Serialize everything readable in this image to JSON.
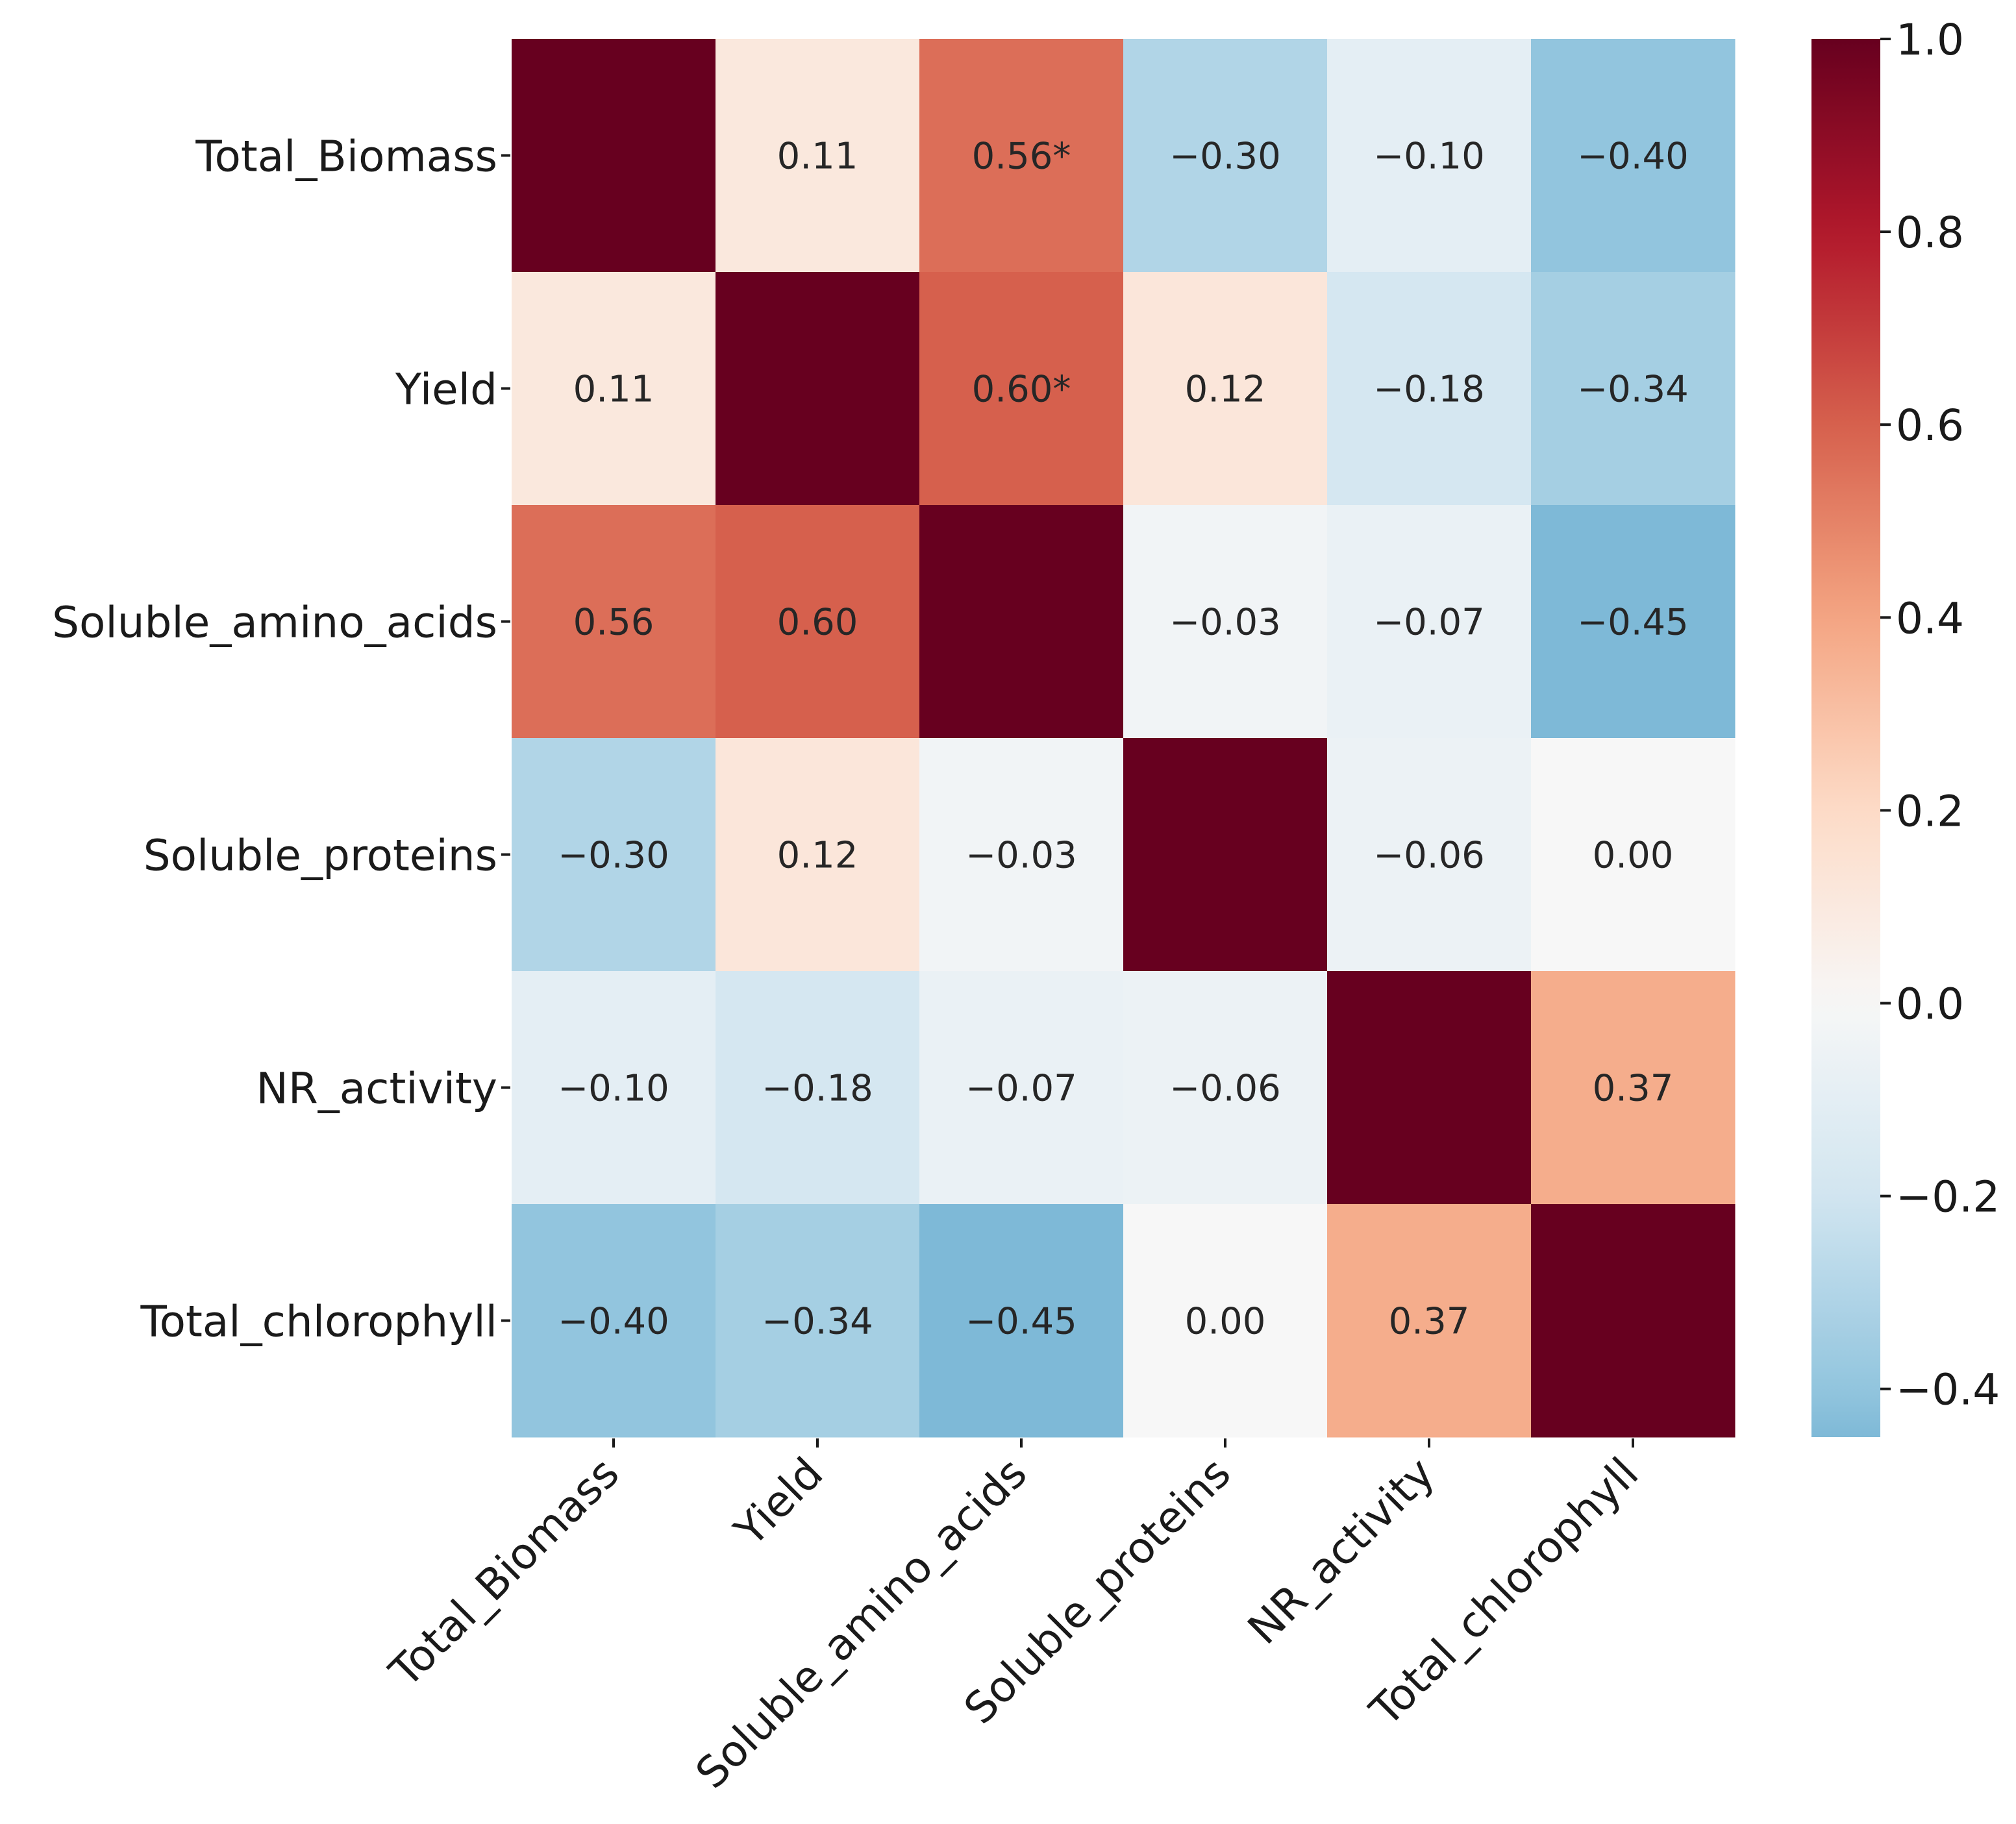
{
  "chart_data": {
    "type": "heatmap",
    "title": "",
    "xlabel": "",
    "ylabel": "",
    "rows": [
      "Total_Biomass",
      "Yield",
      "Soluble_amino_acids",
      "Soluble_proteins",
      "NR_activity",
      "Total_chlorophyll"
    ],
    "columns": [
      "Total_Biomass",
      "Yield",
      "Soluble_amino_acids",
      "Soluble_proteins",
      "NR_activity",
      "Total_chlorophyll"
    ],
    "values": [
      [
        1.0,
        0.11,
        0.56,
        -0.3,
        -0.1,
        -0.4
      ],
      [
        0.11,
        1.0,
        0.6,
        0.12,
        -0.18,
        -0.34
      ],
      [
        0.56,
        0.6,
        1.0,
        -0.03,
        -0.07,
        -0.45
      ],
      [
        -0.3,
        0.12,
        -0.03,
        1.0,
        -0.06,
        0.0
      ],
      [
        -0.1,
        -0.18,
        -0.07,
        -0.06,
        1.0,
        0.37
      ],
      [
        -0.4,
        -0.34,
        -0.45,
        0.0,
        0.37,
        1.0
      ]
    ],
    "cell_labels": [
      [
        "",
        "0.11",
        "0.56*",
        "−0.30",
        "−0.10",
        "−0.40"
      ],
      [
        "0.11",
        "",
        "0.60*",
        "0.12",
        "−0.18",
        "−0.34"
      ],
      [
        "0.56",
        "0.60",
        "",
        "−0.03",
        "−0.07",
        "−0.45"
      ],
      [
        "−0.30",
        "0.12",
        "−0.03",
        "",
        "−0.06",
        "0.00"
      ],
      [
        "−0.10",
        "−0.18",
        "−0.07",
        "−0.06",
        "",
        "0.37"
      ],
      [
        "−0.40",
        "−0.34",
        "−0.45",
        "0.00",
        "0.37",
        ""
      ]
    ],
    "colorscale": "RdBu_r",
    "vmin": -0.45,
    "vmax": 1.0,
    "colorbar": {
      "ticks": [
        1.0,
        0.8,
        0.6,
        0.4,
        0.2,
        0.0,
        -0.2,
        -0.4
      ],
      "tick_labels": [
        "1.0",
        "0.8",
        "0.6",
        "0.4",
        "0.2",
        "0.0",
        "−0.2",
        "−0.4"
      ]
    }
  }
}
